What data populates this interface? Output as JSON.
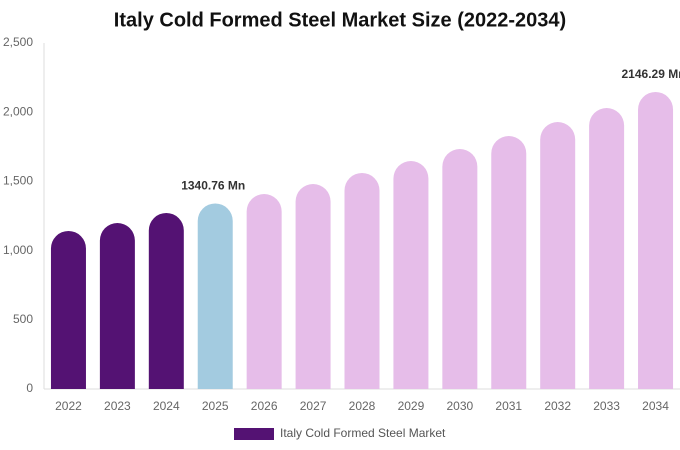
{
  "chart_data": {
    "type": "bar",
    "title": "Italy Cold Formed Steel Market Size (2022-2034)",
    "categories": [
      "2022",
      "2023",
      "2024",
      "2025",
      "2026",
      "2027",
      "2028",
      "2029",
      "2030",
      "2031",
      "2032",
      "2033",
      "2034"
    ],
    "series": [
      {
        "name": "Italy Cold Formed Steel Market",
        "color": "#541273",
        "values": [
          1142,
          1199,
          1272,
          1340.76,
          1409,
          1481,
          1561,
          1647,
          1734,
          1828,
          1929,
          2030,
          2146.29
        ],
        "colors": [
          "#541273",
          "#541273",
          "#541273",
          "#a3cbe0",
          "#e6bde9",
          "#e6bde9",
          "#e6bde9",
          "#e6bde9",
          "#e6bde9",
          "#e6bde9",
          "#e6bde9",
          "#e6bde9",
          "#e6bde9"
        ],
        "value_labels": [
          null,
          null,
          null,
          "1340.76 Mn",
          null,
          null,
          null,
          null,
          null,
          null,
          null,
          null,
          "2146.29 Mn"
        ]
      }
    ],
    "ylim": [
      0,
      2500
    ],
    "yticks": [
      0,
      500,
      {
        "value": 1000,
        "label": "1,000"
      },
      {
        "value": 1500,
        "label": "1,500"
      },
      {
        "value": 2000,
        "label": "2,000"
      },
      {
        "value": 2500,
        "label": "2,500"
      }
    ],
    "grid": false
  }
}
